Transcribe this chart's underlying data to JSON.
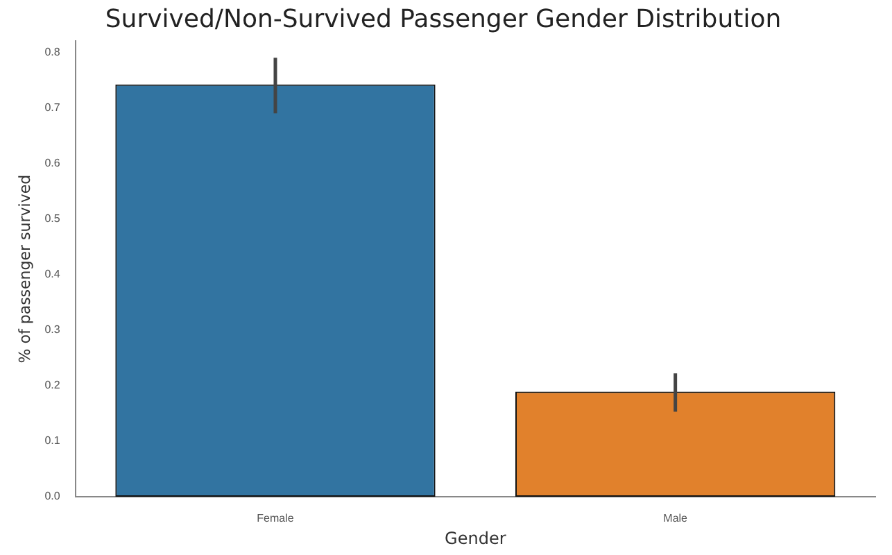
{
  "chart_data": {
    "type": "bar",
    "title": "Survived/Non-Survived Passenger Gender Distribution",
    "xlabel": "Gender",
    "ylabel": "% of passenger survived",
    "categories": [
      "Female",
      "Male"
    ],
    "values": [
      0.742,
      0.189
    ],
    "colors": [
      "#3274a1",
      "#e1812c"
    ],
    "errors": [
      [
        0.69,
        0.79
      ],
      [
        0.153,
        0.222
      ]
    ],
    "ylim": [
      0,
      0.82
    ],
    "yticks": [
      {
        "value": 0,
        "label": "0.0"
      },
      {
        "value": 0.1,
        "label": "0.1"
      },
      {
        "value": 0.2,
        "label": "0.2"
      },
      {
        "value": 0.3,
        "label": "0.3"
      },
      {
        "value": 0.4,
        "label": "0.4"
      },
      {
        "value": 0.5,
        "label": "0.5"
      },
      {
        "value": 0.6,
        "label": "0.6"
      },
      {
        "value": 0.7,
        "label": "0.7"
      },
      {
        "value": 0.8,
        "label": "0.8"
      }
    ],
    "grid": false,
    "legend": false
  }
}
